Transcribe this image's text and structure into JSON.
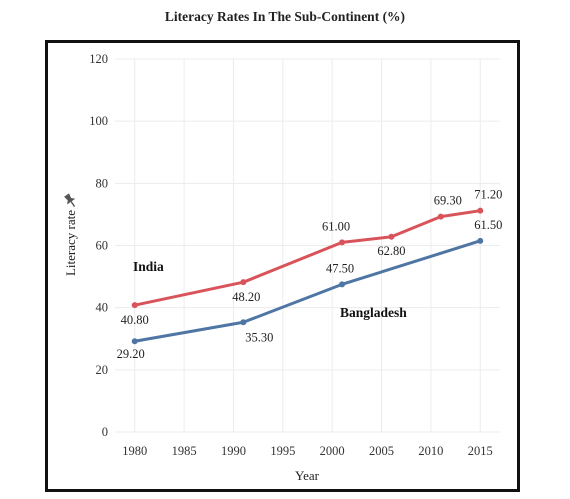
{
  "title": "Literacy Rates In The Sub-Continent (%)",
  "chart_data": {
    "type": "line",
    "title": "Literacy Rates In The Sub-Continent (%)",
    "xlabel": "Year",
    "ylabel": "Literacy rate",
    "xlim": [
      1978,
      2017
    ],
    "ylim": [
      0,
      120
    ],
    "xticks": [
      1980,
      1985,
      1990,
      1995,
      2000,
      2005,
      2010,
      2015
    ],
    "yticks": [
      0,
      20,
      40,
      60,
      80,
      100,
      120
    ],
    "grid": true,
    "series": [
      {
        "name": "India",
        "color": "#d9535a",
        "x": [
          1980,
          1991,
          2001,
          2006,
          2011,
          2015
        ],
        "values": [
          40.8,
          48.2,
          61.0,
          62.8,
          69.3,
          71.2
        ],
        "labels": [
          "40.80",
          "48.20",
          "61.00",
          "62.80",
          "69.30",
          "71.20"
        ]
      },
      {
        "name": "Bangladesh",
        "color": "#4e75a3",
        "x": [
          1980,
          1991,
          2001,
          2015
        ],
        "values": [
          29.2,
          35.3,
          47.5,
          61.5
        ],
        "labels": [
          "29.20",
          "35.30",
          "47.50",
          "61.50"
        ]
      }
    ]
  }
}
